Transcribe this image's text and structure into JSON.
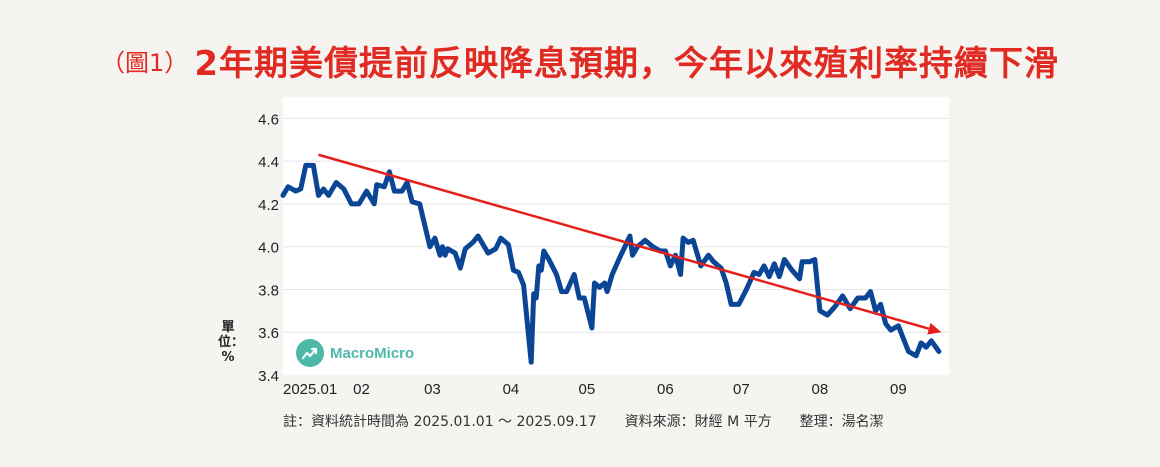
{
  "header": {
    "figure_number": "（圖1）",
    "title": "2年期美債提前反映降息預期，今年以來殖利率持續下滑"
  },
  "y_unit_label": "單位：%",
  "logo": {
    "name": "MacroMicro",
    "icon": "chart-growth-icon",
    "color": "#4db8a8"
  },
  "footnote": {
    "note": "註：資料統計時間為 2025.01.01 ～ 2025.09.17",
    "source": "資料來源：財經 M 平方",
    "compiled_by": "整理：湯名潔"
  },
  "colors": {
    "title": "#e12a22",
    "series_line": "#0b4596",
    "trend_arrow": "#e3201b",
    "grid": "#e6e6e6"
  },
  "chart_data": {
    "type": "line",
    "title": "2年期美債提前反映降息預期，今年以來殖利率持續下滑",
    "xlabel": "",
    "ylabel": "單位：%",
    "ylim": [
      3.4,
      4.7
    ],
    "yticks": [
      "3.4",
      "3.6",
      "3.8",
      "4.0",
      "4.2",
      "4.4",
      "4.6"
    ],
    "xlim": [
      "2025-01-01",
      "2025-09-21"
    ],
    "xticks": [
      {
        "label": "2025.01",
        "date": "2025-01-01"
      },
      {
        "label": "02",
        "date": "2025-02-01"
      },
      {
        "label": "03",
        "date": "2025-03-01"
      },
      {
        "label": "04",
        "date": "2025-04-01"
      },
      {
        "label": "05",
        "date": "2025-05-01"
      },
      {
        "label": "06",
        "date": "2025-06-01"
      },
      {
        "label": "07",
        "date": "2025-07-01"
      },
      {
        "label": "08",
        "date": "2025-08-01"
      },
      {
        "label": "09",
        "date": "2025-09-01"
      }
    ],
    "grid": "horizontal",
    "series": [
      {
        "values": [
          [
            "2025-01-01",
            4.24
          ],
          [
            "2025-01-03",
            4.28
          ],
          [
            "2025-01-06",
            4.26
          ],
          [
            "2025-01-08",
            4.27
          ],
          [
            "2025-01-10",
            4.38
          ],
          [
            "2025-01-13",
            4.38
          ],
          [
            "2025-01-15",
            4.24
          ],
          [
            "2025-01-17",
            4.27
          ],
          [
            "2025-01-19",
            4.24
          ],
          [
            "2025-01-22",
            4.3
          ],
          [
            "2025-01-25",
            4.27
          ],
          [
            "2025-01-28",
            4.2
          ],
          [
            "2025-01-31",
            4.2
          ],
          [
            "2025-02-03",
            4.26
          ],
          [
            "2025-02-06",
            4.2
          ],
          [
            "2025-02-07",
            4.29
          ],
          [
            "2025-02-10",
            4.28
          ],
          [
            "2025-02-12",
            4.35
          ],
          [
            "2025-02-14",
            4.26
          ],
          [
            "2025-02-17",
            4.26
          ],
          [
            "2025-02-19",
            4.3
          ],
          [
            "2025-02-21",
            4.21
          ],
          [
            "2025-02-24",
            4.2
          ],
          [
            "2025-02-26",
            4.1
          ],
          [
            "2025-02-28",
            4.0
          ],
          [
            "2025-03-02",
            4.04
          ],
          [
            "2025-03-04",
            3.96
          ],
          [
            "2025-03-05",
            4.0
          ],
          [
            "2025-03-06",
            3.96
          ],
          [
            "2025-03-07",
            3.99
          ],
          [
            "2025-03-10",
            3.97
          ],
          [
            "2025-03-12",
            3.9
          ],
          [
            "2025-03-14",
            3.99
          ],
          [
            "2025-03-17",
            4.02
          ],
          [
            "2025-03-19",
            4.05
          ],
          [
            "2025-03-21",
            4.01
          ],
          [
            "2025-03-23",
            3.97
          ],
          [
            "2025-03-26",
            3.99
          ],
          [
            "2025-03-28",
            4.04
          ],
          [
            "2025-03-31",
            4.01
          ],
          [
            "2025-04-02",
            3.89
          ],
          [
            "2025-04-04",
            3.88
          ],
          [
            "2025-04-06",
            3.82
          ],
          [
            "2025-04-07",
            3.7
          ],
          [
            "2025-04-09",
            3.46
          ],
          [
            "2025-04-10",
            3.78
          ],
          [
            "2025-04-11",
            3.76
          ],
          [
            "2025-04-12",
            3.91
          ],
          [
            "2025-04-13",
            3.89
          ],
          [
            "2025-04-14",
            3.98
          ],
          [
            "2025-04-16",
            3.94
          ],
          [
            "2025-04-19",
            3.87
          ],
          [
            "2025-04-21",
            3.79
          ],
          [
            "2025-04-23",
            3.79
          ],
          [
            "2025-04-26",
            3.87
          ],
          [
            "2025-04-28",
            3.76
          ],
          [
            "2025-04-30",
            3.76
          ],
          [
            "2025-05-03",
            3.62
          ],
          [
            "2025-05-04",
            3.83
          ],
          [
            "2025-05-06",
            3.81
          ],
          [
            "2025-05-08",
            3.83
          ],
          [
            "2025-05-09",
            3.79
          ],
          [
            "2025-05-11",
            3.87
          ],
          [
            "2025-05-14",
            3.95
          ],
          [
            "2025-05-16",
            4.0
          ],
          [
            "2025-05-18",
            4.05
          ],
          [
            "2025-05-19",
            3.96
          ],
          [
            "2025-05-21",
            4.0
          ],
          [
            "2025-05-24",
            4.03
          ],
          [
            "2025-05-27",
            4.0
          ],
          [
            "2025-05-30",
            3.98
          ],
          [
            "2025-06-01",
            3.98
          ],
          [
            "2025-06-03",
            3.91
          ],
          [
            "2025-06-05",
            3.96
          ],
          [
            "2025-06-07",
            3.87
          ],
          [
            "2025-06-08",
            4.04
          ],
          [
            "2025-06-10",
            4.02
          ],
          [
            "2025-06-12",
            4.03
          ],
          [
            "2025-06-15",
            3.91
          ],
          [
            "2025-06-18",
            3.96
          ],
          [
            "2025-06-20",
            3.93
          ],
          [
            "2025-06-23",
            3.9
          ],
          [
            "2025-06-25",
            3.83
          ],
          [
            "2025-06-27",
            3.73
          ],
          [
            "2025-06-30",
            3.73
          ],
          [
            "2025-07-03",
            3.8
          ],
          [
            "2025-07-06",
            3.88
          ],
          [
            "2025-07-08",
            3.87
          ],
          [
            "2025-07-10",
            3.91
          ],
          [
            "2025-07-12",
            3.86
          ],
          [
            "2025-07-14",
            3.92
          ],
          [
            "2025-07-16",
            3.86
          ],
          [
            "2025-07-18",
            3.94
          ],
          [
            "2025-07-21",
            3.89
          ],
          [
            "2025-07-24",
            3.85
          ],
          [
            "2025-07-25",
            3.93
          ],
          [
            "2025-07-28",
            3.93
          ],
          [
            "2025-07-30",
            3.94
          ],
          [
            "2025-08-01",
            3.7
          ],
          [
            "2025-08-04",
            3.68
          ],
          [
            "2025-08-07",
            3.72
          ],
          [
            "2025-08-10",
            3.77
          ],
          [
            "2025-08-13",
            3.71
          ],
          [
            "2025-08-16",
            3.76
          ],
          [
            "2025-08-19",
            3.76
          ],
          [
            "2025-08-21",
            3.79
          ],
          [
            "2025-08-23",
            3.7
          ],
          [
            "2025-08-25",
            3.73
          ],
          [
            "2025-08-27",
            3.64
          ],
          [
            "2025-08-29",
            3.61
          ],
          [
            "2025-09-01",
            3.63
          ],
          [
            "2025-09-03",
            3.57
          ],
          [
            "2025-09-05",
            3.51
          ],
          [
            "2025-09-08",
            3.49
          ],
          [
            "2025-09-10",
            3.55
          ],
          [
            "2025-09-12",
            3.53
          ],
          [
            "2025-09-14",
            3.56
          ],
          [
            "2025-09-17",
            3.51
          ]
        ]
      }
    ],
    "annotations": [
      {
        "type": "trend-arrow",
        "from": [
          "2025-01-15",
          4.43
        ],
        "to": [
          "2025-09-18",
          3.6
        ]
      }
    ]
  }
}
